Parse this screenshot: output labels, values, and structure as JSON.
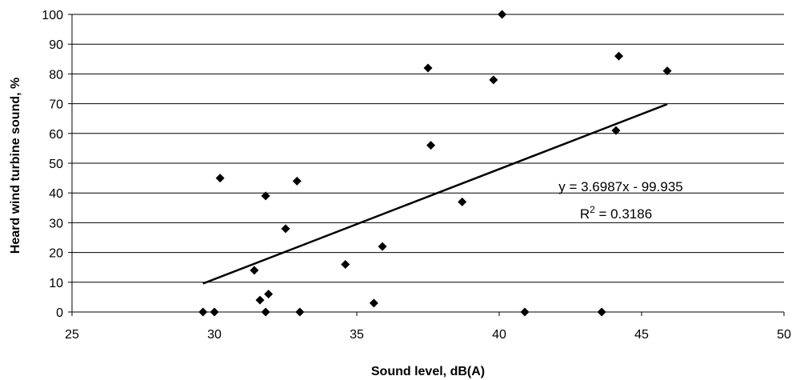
{
  "chart_data": {
    "type": "scatter",
    "title": "",
    "xlabel": "Sound level, dB(A)",
    "ylabel": "Heard wind turbine sound, %",
    "xlim": [
      25,
      50
    ],
    "ylim": [
      0,
      100
    ],
    "x_ticks": [
      25,
      30,
      35,
      40,
      45,
      50
    ],
    "y_ticks": [
      0,
      10,
      20,
      30,
      40,
      50,
      60,
      70,
      80,
      90,
      100
    ],
    "grid": "horizontal",
    "marker": "diamond",
    "points": [
      {
        "x": 29.6,
        "y": 0
      },
      {
        "x": 30.0,
        "y": 0
      },
      {
        "x": 30.2,
        "y": 45
      },
      {
        "x": 31.4,
        "y": 14
      },
      {
        "x": 31.6,
        "y": 4
      },
      {
        "x": 31.8,
        "y": 0
      },
      {
        "x": 31.8,
        "y": 39
      },
      {
        "x": 31.9,
        "y": 6
      },
      {
        "x": 32.5,
        "y": 28
      },
      {
        "x": 32.9,
        "y": 44
      },
      {
        "x": 33.0,
        "y": 0
      },
      {
        "x": 34.6,
        "y": 16
      },
      {
        "x": 35.6,
        "y": 3
      },
      {
        "x": 35.9,
        "y": 22
      },
      {
        "x": 37.5,
        "y": 82
      },
      {
        "x": 37.6,
        "y": 56
      },
      {
        "x": 38.7,
        "y": 37
      },
      {
        "x": 39.8,
        "y": 78
      },
      {
        "x": 40.1,
        "y": 100
      },
      {
        "x": 40.9,
        "y": 0
      },
      {
        "x": 43.6,
        "y": 0
      },
      {
        "x": 44.1,
        "y": 61
      },
      {
        "x": 44.2,
        "y": 86
      },
      {
        "x": 45.9,
        "y": 81
      }
    ],
    "trendline": {
      "type": "linear",
      "slope": 3.6987,
      "intercept": -99.935,
      "x_range": [
        29.6,
        45.9
      ],
      "equation_label": "y = 3.6987x - 99.935",
      "r2_prefix": "R",
      "r2_sup": "2",
      "r2_value": " = 0.3186"
    },
    "colors": {
      "marker": "#000000",
      "line": "#000000",
      "grid": "#000000"
    }
  }
}
